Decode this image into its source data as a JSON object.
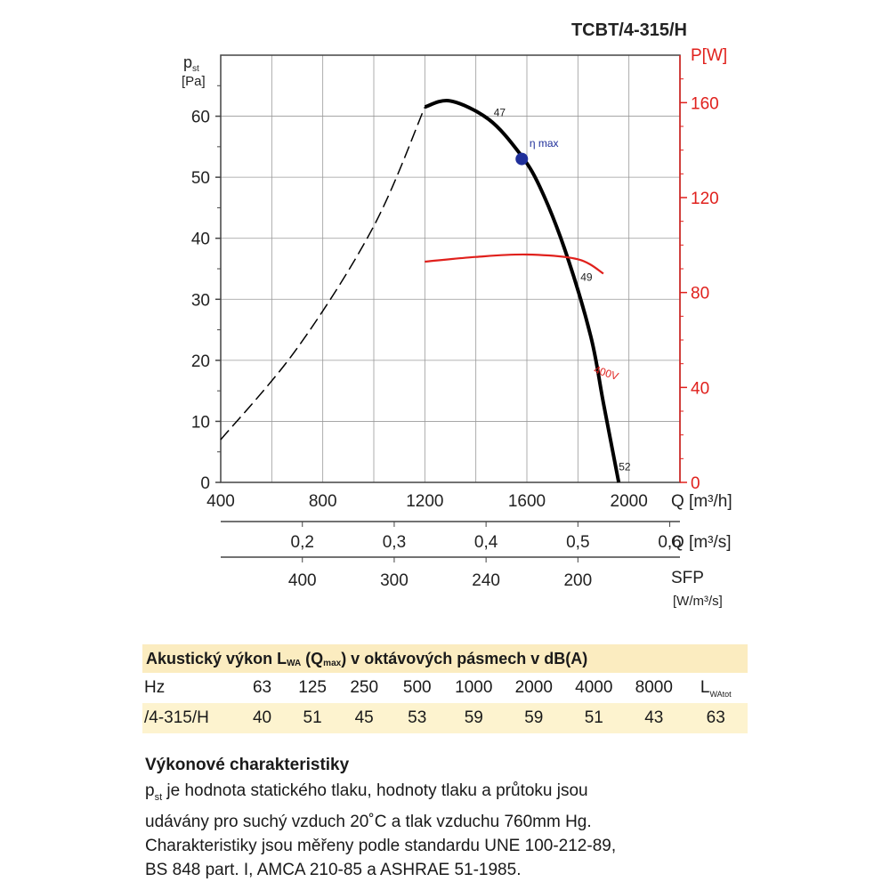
{
  "chart_data": {
    "type": "line",
    "title": "TCBT/4-315/H",
    "y_left": {
      "label_main": "p",
      "label_sub": "st",
      "unit": "[Pa]",
      "range": [
        0,
        70
      ],
      "ticks": [
        0,
        10,
        20,
        30,
        40,
        50,
        60
      ]
    },
    "y_right": {
      "label": "P[W]",
      "range": [
        0,
        180
      ],
      "ticks": [
        0,
        40,
        80,
        120,
        160
      ],
      "color": "#e0201c"
    },
    "x_axes": [
      {
        "label": "Q [m³/h]",
        "range": [
          400,
          2200
        ],
        "ticks": [
          "400",
          "800",
          "1200",
          "1600",
          "2000"
        ]
      },
      {
        "label": "Q [m³/s]",
        "ticks": [
          "0,2",
          "0,3",
          "0,4",
          "0,5",
          "0,6"
        ],
        "values": [
          0.2,
          0.3,
          0.4,
          0.5,
          0.6
        ]
      },
      {
        "label": "SFP",
        "unit": "[W/m³/s]",
        "ticks": [
          "400",
          "300",
          "240",
          "200"
        ],
        "at_q_m3h": [
          720,
          1080,
          1440,
          1800
        ]
      }
    ],
    "series": [
      {
        "style": "dashed",
        "color": "#000000",
        "x": [
          400,
          700,
          1000,
          1200
        ],
        "y": [
          7,
          22,
          42,
          61.5
        ]
      },
      {
        "style": "solid-thick",
        "color": "#000000",
        "x": [
          1200,
          1300,
          1450,
          1570,
          1650,
          1750,
          1850,
          1900,
          1960
        ],
        "y": [
          61.5,
          62.5,
          59.5,
          54,
          48.5,
          38,
          24,
          13,
          0
        ]
      },
      {
        "name": "400V",
        "axis": "right",
        "color": "#e0201c",
        "x": [
          1200,
          1400,
          1600,
          1800,
          1900
        ],
        "y": [
          93,
          95,
          96,
          94,
          88
        ]
      }
    ],
    "annotations": [
      {
        "text": "47",
        "x": 1470,
        "y": 60
      },
      {
        "text": "η max",
        "x": 1610,
        "y": 55
      },
      {
        "text": "49",
        "x": 1810,
        "y": 33
      },
      {
        "text": "52",
        "x": 1960,
        "y": 2
      },
      {
        "text": "400V",
        "x": 1860,
        "y": 18
      }
    ],
    "eta_max_point": {
      "x": 1580,
      "y": 53,
      "color": "#1f2f9a"
    },
    "grid": true
  },
  "acoustic": {
    "title_pre": "Akustický výkon L",
    "title_sub1": "WA",
    "title_mid": " (Q",
    "title_sub2": "max",
    "title_post": ") v oktávových pásmech v dB(A)",
    "hz_label": "Hz",
    "frequencies": [
      "63",
      "125",
      "250",
      "500",
      "1000",
      "2000",
      "4000",
      "8000"
    ],
    "total_label_main": "L",
    "total_label_sub": "WAtot",
    "model": "/4-315/H",
    "values": [
      "40",
      "51",
      "45",
      "53",
      "59",
      "59",
      "51",
      "43"
    ],
    "total": "63"
  },
  "performance": {
    "title": "Výkonové charakteristiky",
    "p_main": "p",
    "p_sub": "st",
    "line1": " je hodnota statického tlaku, hodnoty tlaku a průtoku jsou",
    "line2": "udávány pro suchý vzduch 20˚C a tlak vzduchu 760mm Hg.",
    "line3": "Charakteristiky jsou měřeny podle standardu UNE 100-212-89,",
    "line4": "BS 848 part. I, AMCA 210-85 a ASHRAE 51-1985."
  }
}
